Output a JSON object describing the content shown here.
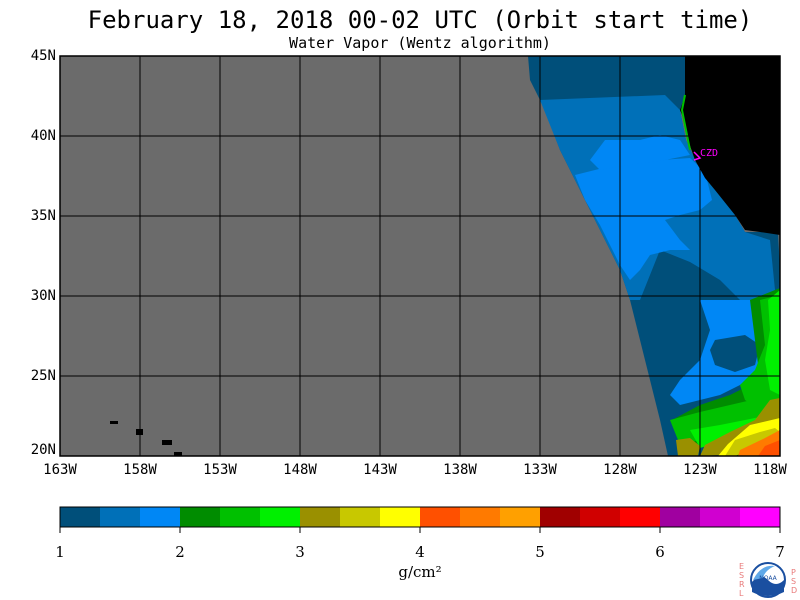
{
  "header": {
    "title": "February 18, 2018  00-02 UTC  (Orbit start time)",
    "subtitle": "Water Vapor (Wentz algorithm)"
  },
  "map": {
    "lat_labels": [
      "45N",
      "40N",
      "35N",
      "30N",
      "25N",
      "20N"
    ],
    "lon_labels": [
      "163W",
      "158W",
      "153W",
      "148W",
      "143W",
      "138W",
      "133W",
      "128W",
      "123W",
      "118W"
    ],
    "station_label": "CZD",
    "colors": {
      "no_data": "#6b6b6b",
      "land": "#000000",
      "grid": "#000000",
      "station": "#ff00ff"
    }
  },
  "colorbar": {
    "tick_labels": [
      "1",
      "2",
      "3",
      "4",
      "5",
      "6",
      "7"
    ],
    "units": "g/cm²",
    "colors": [
      "#004f7a",
      "#0070b8",
      "#0087f5",
      "#008c00",
      "#00c000",
      "#00f000",
      "#9a9000",
      "#c8c800",
      "#ffff00",
      "#ff5000",
      "#ff7a00",
      "#ffa000",
      "#a00000",
      "#d00000",
      "#ff0000",
      "#a000a0",
      "#d000d0",
      "#ff00ff"
    ]
  },
  "logo": {
    "left_letters": "ESRL",
    "right_letters": "PSD",
    "inner_text": "NOAA"
  }
}
